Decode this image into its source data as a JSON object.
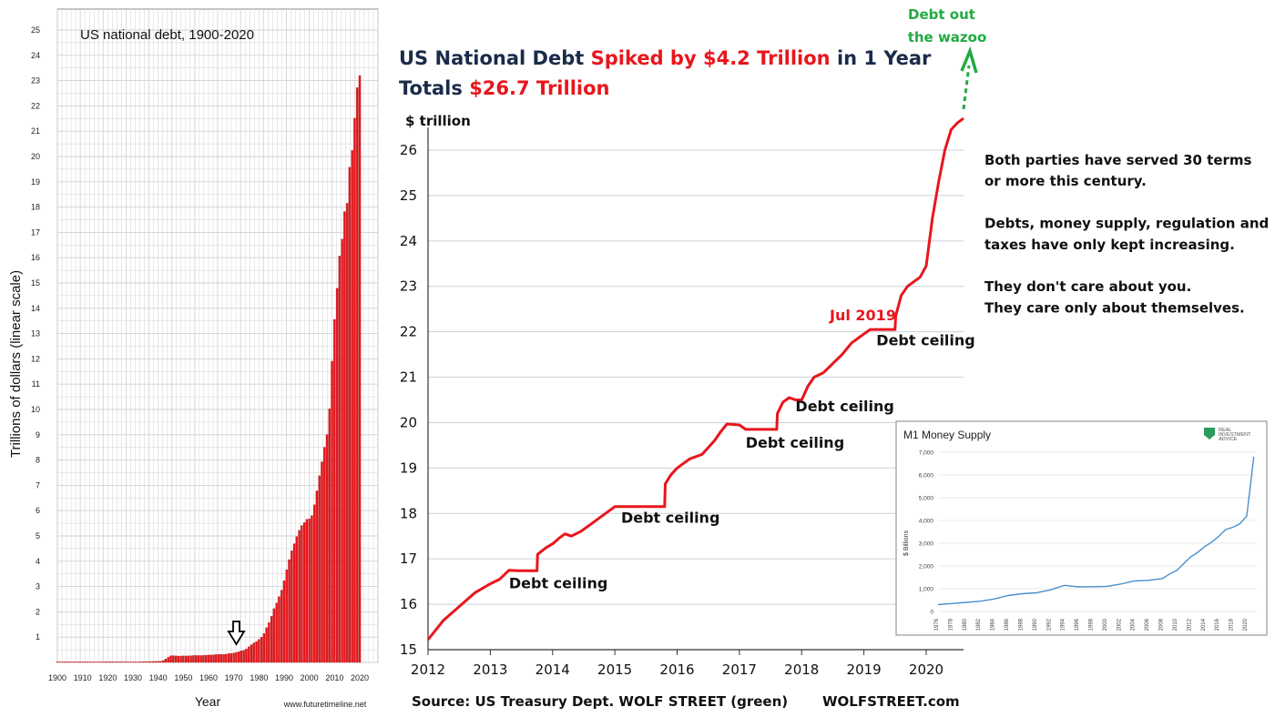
{
  "colors": {
    "debt_red": "#e8161c",
    "accent_green": "#22aa44",
    "navy": "#1a2b4a",
    "m1_blue": "#4a90d0",
    "grid": "#c8c8c8"
  },
  "chart_data": [
    {
      "type": "bar",
      "title": "US national debt, 1900-2020",
      "xlabel": "Year",
      "ylabel": "Trillions of dollars (linear scale)",
      "credit": "www.futuretimeline.net",
      "xlim": [
        1900,
        2020
      ],
      "ylim": [
        0,
        25
      ],
      "x_ticks": [
        "1900",
        "1910",
        "1920",
        "1930",
        "1940",
        "1950",
        "1960",
        "1970",
        "1980",
        "1990",
        "2000",
        "2010",
        "2020"
      ],
      "y_ticks": [
        "1",
        "2",
        "3",
        "4",
        "5",
        "6",
        "7",
        "8",
        "9",
        "10",
        "11",
        "12",
        "13",
        "14",
        "15",
        "16",
        "17",
        "18",
        "19",
        "20",
        "21",
        "22",
        "23",
        "24",
        "25"
      ],
      "marker": "down-arrow-1971",
      "years": [
        1900,
        1901,
        1902,
        1903,
        1904,
        1905,
        1906,
        1907,
        1908,
        1909,
        1910,
        1911,
        1912,
        1913,
        1914,
        1915,
        1916,
        1917,
        1918,
        1919,
        1920,
        1921,
        1922,
        1923,
        1924,
        1925,
        1926,
        1927,
        1928,
        1929,
        1930,
        1931,
        1932,
        1933,
        1934,
        1935,
        1936,
        1937,
        1938,
        1939,
        1940,
        1941,
        1942,
        1943,
        1944,
        1945,
        1946,
        1947,
        1948,
        1949,
        1950,
        1951,
        1952,
        1953,
        1954,
        1955,
        1956,
        1957,
        1958,
        1959,
        1960,
        1961,
        1962,
        1963,
        1964,
        1965,
        1966,
        1967,
        1968,
        1969,
        1970,
        1971,
        1972,
        1973,
        1974,
        1975,
        1976,
        1977,
        1978,
        1979,
        1980,
        1981,
        1982,
        1983,
        1984,
        1985,
        1986,
        1987,
        1988,
        1989,
        1990,
        1991,
        1992,
        1993,
        1994,
        1995,
        1996,
        1997,
        1998,
        1999,
        2000,
        2001,
        2002,
        2003,
        2004,
        2005,
        2006,
        2007,
        2008,
        2009,
        2010,
        2011,
        2012,
        2013,
        2014,
        2015,
        2016,
        2017,
        2018,
        2019,
        2020
      ],
      "values": [
        0.001,
        0.001,
        0.001,
        0.001,
        0.001,
        0.001,
        0.001,
        0.001,
        0.001,
        0.001,
        0.001,
        0.001,
        0.001,
        0.001,
        0.001,
        0.003,
        0.003,
        0.006,
        0.012,
        0.025,
        0.024,
        0.024,
        0.023,
        0.022,
        0.021,
        0.02,
        0.019,
        0.018,
        0.018,
        0.017,
        0.016,
        0.017,
        0.019,
        0.022,
        0.027,
        0.029,
        0.034,
        0.036,
        0.037,
        0.04,
        0.043,
        0.049,
        0.072,
        0.137,
        0.201,
        0.259,
        0.269,
        0.258,
        0.252,
        0.253,
        0.257,
        0.255,
        0.259,
        0.266,
        0.271,
        0.274,
        0.273,
        0.272,
        0.28,
        0.287,
        0.291,
        0.293,
        0.303,
        0.311,
        0.317,
        0.32,
        0.32,
        0.326,
        0.348,
        0.354,
        0.371,
        0.398,
        0.427,
        0.458,
        0.475,
        0.533,
        0.62,
        0.699,
        0.772,
        0.827,
        0.908,
        0.998,
        1.142,
        1.377,
        1.572,
        1.823,
        2.125,
        2.35,
        2.602,
        2.857,
        3.233,
        3.665,
        4.065,
        4.411,
        4.693,
        4.974,
        5.225,
        5.413,
        5.526,
        5.656,
        5.674,
        5.807,
        6.228,
        6.783,
        7.379,
        7.933,
        8.507,
        9.008,
        10.025,
        11.91,
        13.562,
        14.79,
        16.066,
        16.738,
        17.824,
        18.151,
        19.573,
        20.245,
        21.516,
        22.719,
        23.2
      ]
    },
    {
      "type": "line",
      "title_parts": [
        {
          "text": "US National Debt ",
          "color": "navy"
        },
        {
          "text": "Spiked by $4.2 Trillion",
          "color": "red"
        },
        {
          "text": " in 1 Year",
          "color": "navy"
        }
      ],
      "subtitle_parts": [
        {
          "text": "Totals ",
          "color": "navy"
        },
        {
          "text": "$26.7 Trillion",
          "color": "red"
        }
      ],
      "ylabel": "$ trillion",
      "xlim": [
        2012,
        2020.6
      ],
      "ylim": [
        15,
        26.6
      ],
      "x_ticks": [
        "2012",
        "2013",
        "2014",
        "2015",
        "2016",
        "2017",
        "2018",
        "2019",
        "2020"
      ],
      "y_ticks": [
        "15",
        "16",
        "17",
        "18",
        "19",
        "20",
        "21",
        "22",
        "23",
        "24",
        "25",
        "26"
      ],
      "series": [
        {
          "x": [
            2012.0,
            2012.25,
            2012.5,
            2012.75,
            2013.0,
            2013.15,
            2013.3,
            2013.45,
            2013.6,
            2013.75,
            2013.76,
            2013.9,
            2014.0,
            2014.1,
            2014.2,
            2014.3,
            2014.45,
            2014.6,
            2014.75,
            2014.9,
            2015.0,
            2015.2,
            2015.4,
            2015.6,
            2015.8,
            2015.81,
            2015.9,
            2016.0,
            2016.2,
            2016.4,
            2016.5,
            2016.6,
            2016.7,
            2016.8,
            2017.0,
            2017.1,
            2017.3,
            2017.6,
            2017.61,
            2017.7,
            2017.8,
            2017.9,
            2018.0,
            2018.1,
            2018.2,
            2018.35,
            2018.5,
            2018.65,
            2018.8,
            2019.0,
            2019.1,
            2019.3,
            2019.5,
            2019.51,
            2019.6,
            2019.7,
            2019.8,
            2019.9,
            2020.0,
            2020.1,
            2020.2,
            2020.3,
            2020.4,
            2020.5,
            2020.6
          ],
          "y": [
            15.22,
            15.65,
            15.95,
            16.25,
            16.45,
            16.55,
            16.75,
            16.74,
            16.74,
            16.74,
            17.1,
            17.25,
            17.33,
            17.45,
            17.55,
            17.5,
            17.6,
            17.75,
            17.9,
            18.05,
            18.15,
            18.15,
            18.15,
            18.15,
            18.15,
            18.65,
            18.85,
            19.0,
            19.2,
            19.3,
            19.45,
            19.6,
            19.8,
            19.97,
            19.95,
            19.85,
            19.85,
            19.85,
            20.2,
            20.45,
            20.55,
            20.5,
            20.5,
            20.8,
            21.0,
            21.1,
            21.3,
            21.5,
            21.75,
            21.95,
            22.05,
            22.05,
            22.05,
            22.35,
            22.8,
            23.0,
            23.1,
            23.2,
            23.45,
            24.5,
            25.3,
            26.0,
            26.45,
            26.6,
            26.7
          ]
        }
      ],
      "annotations": [
        {
          "text": "Debt ceiling",
          "x": 2013.3,
          "y": 16.35
        },
        {
          "text": "Debt ceiling",
          "x": 2015.1,
          "y": 17.8
        },
        {
          "text": "Debt ceiling",
          "x": 2017.1,
          "y": 19.45
        },
        {
          "text": "Debt ceiling",
          "x": 2017.9,
          "y": 20.25
        },
        {
          "text": "Jul 2019",
          "x": 2018.45,
          "y": 22.25,
          "color": "red"
        },
        {
          "text": "Debt ceiling",
          "x": 2019.2,
          "y": 21.7
        }
      ],
      "arrow_label": [
        "Debt out",
        "the wazoo"
      ],
      "source": "Source: US Treasury Dept. WOLF STREET (green)",
      "brand": "WOLFSTREET.com"
    },
    {
      "type": "line",
      "title": "M1 Money Supply",
      "logo_text": [
        "REAL",
        "INVESTMENT",
        "ADVICE"
      ],
      "ylabel": "$ Billions",
      "xlim": [
        1976,
        2021
      ],
      "ylim": [
        0,
        7000
      ],
      "x_ticks": [
        "1976",
        "1978",
        "1980",
        "1982",
        "1984",
        "1986",
        "1988",
        "1990",
        "1992",
        "1994",
        "1996",
        "1998",
        "2000",
        "2002",
        "2004",
        "2006",
        "2008",
        "2010",
        "2012",
        "2014",
        "2016",
        "2018",
        "2020"
      ],
      "y_ticks": [
        "0",
        "1,000",
        "2,000",
        "3,000",
        "4,000",
        "5,000",
        "6,000",
        "7,000"
      ],
      "series": [
        {
          "x": [
            1976,
            1978,
            1980,
            1982,
            1984,
            1986,
            1988,
            1990,
            1992,
            1994,
            1996,
            1998,
            2000,
            2002,
            2004,
            2006,
            2008,
            2009,
            2010,
            2011,
            2012,
            2013,
            2014,
            2015,
            2016,
            2017,
            2018,
            2019,
            2020,
            2020.5,
            2021
          ],
          "y": [
            300,
            350,
            400,
            450,
            550,
            700,
            780,
            820,
            950,
            1150,
            1080,
            1090,
            1100,
            1200,
            1340,
            1370,
            1450,
            1650,
            1800,
            2100,
            2400,
            2600,
            2850,
            3050,
            3300,
            3600,
            3700,
            3850,
            4200,
            5500,
            6800
          ]
        }
      ]
    }
  ],
  "commentary": [
    "Both parties have served 30 terms",
    "or more this century.",
    "",
    "Debts, money supply, regulation and",
    "taxes have only kept increasing.",
    "",
    "They don't care about you.",
    "They care only about themselves."
  ]
}
